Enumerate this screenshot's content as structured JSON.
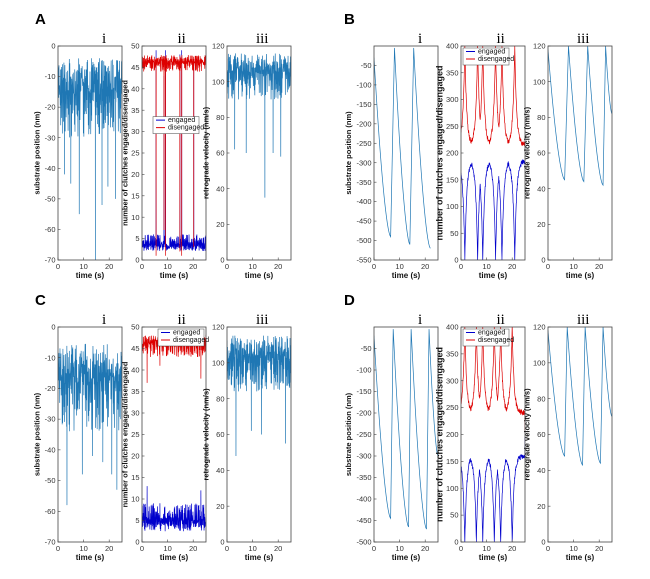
{
  "chart_data": [
    {
      "type": "line",
      "panel": "A",
      "subpanel": "i",
      "xlabel": "time (s)",
      "ylabel": "substrate position (nm)",
      "xlim": [
        0,
        25
      ],
      "ylim": [
        -70,
        0
      ],
      "xticks": [
        0,
        10,
        20
      ],
      "yticks": [
        0,
        -10,
        -20,
        -30,
        -40,
        -50,
        -60,
        -70
      ],
      "series": [
        {
          "color": "#1f77b4",
          "pattern": "noise",
          "baseline": -10,
          "spread": 20,
          "spikes": [
            [
              2.5,
              -42
            ],
            [
              5,
              -45
            ],
            [
              8.3,
              -55
            ],
            [
              14.6,
              -70
            ],
            [
              17.2,
              -52
            ],
            [
              19.5,
              -46
            ],
            [
              22.5,
              -50
            ]
          ]
        }
      ]
    },
    {
      "type": "line",
      "panel": "A",
      "subpanel": "ii",
      "xlabel": "time (s)",
      "ylabel": "number of clutches engaged/disengaged",
      "xlim": [
        0,
        25
      ],
      "ylim": [
        0,
        50
      ],
      "xticks": [
        0,
        10,
        20
      ],
      "yticks": [
        0,
        5,
        10,
        15,
        20,
        25,
        30,
        35,
        40,
        45,
        50
      ],
      "legend": {
        "position": "upper-middle",
        "entries": [
          "engaged",
          "disengaged"
        ]
      },
      "series": [
        {
          "name": "engaged",
          "color": "#0000cc",
          "pattern": "noise",
          "baseline": 3,
          "spread": 3,
          "spikes": [
            [
              5.5,
              49
            ],
            [
              8.6,
              43
            ],
            [
              9.2,
              49
            ],
            [
              14.8,
              48
            ],
            [
              15.5,
              49
            ],
            [
              20.2,
              47
            ]
          ]
        },
        {
          "name": "disengaged",
          "color": "#dd0000",
          "pattern": "noise",
          "baseline": 47,
          "spread": 3,
          "spikes": [
            [
              5.5,
              1
            ],
            [
              8.6,
              7
            ],
            [
              9.2,
              1
            ],
            [
              14.8,
              2
            ],
            [
              15.5,
              1
            ],
            [
              20.2,
              3
            ]
          ]
        }
      ]
    },
    {
      "type": "line",
      "panel": "A",
      "subpanel": "iii",
      "xlabel": "time (s)",
      "ylabel": "retrograde velocity (nm/s)",
      "xlim": [
        0,
        25
      ],
      "ylim": [
        0,
        120
      ],
      "xticks": [
        0,
        10,
        20
      ],
      "yticks": [
        0,
        20,
        40,
        60,
        80,
        100,
        120
      ],
      "series": [
        {
          "color": "#1f77b4",
          "pattern": "noise",
          "baseline": 110,
          "spread": 20,
          "spikes": [
            [
              3,
              62
            ],
            [
              7.5,
              60
            ],
            [
              14.8,
              35
            ],
            [
              18,
              60
            ],
            [
              21,
              58
            ]
          ]
        }
      ]
    },
    {
      "type": "line",
      "panel": "B",
      "subpanel": "i",
      "xlabel": "time (s)",
      "ylabel": "substrate position (nm)",
      "xlim": [
        0,
        25
      ],
      "ylim": [
        -550,
        0
      ],
      "xticks": [
        0,
        10,
        20
      ],
      "yticks": [
        -50,
        -100,
        -150,
        -200,
        -250,
        -300,
        -350,
        -400,
        -450,
        -500,
        -550
      ],
      "series": [
        {
          "color": "#1f77b4",
          "pattern": "sawtooth",
          "peaks": [
            1,
            8,
            15.5
          ],
          "troughs": [
            [
              6.5,
              -490
            ],
            [
              14,
              -510
            ],
            [
              22,
              -520
            ]
          ],
          "start": -30,
          "top": -5
        }
      ]
    },
    {
      "type": "line",
      "panel": "B",
      "subpanel": "ii",
      "xlabel": "time (s)",
      "ylabel": "number of clutches engaged/disengaged",
      "xlim": [
        0,
        25
      ],
      "ylim": [
        0,
        400
      ],
      "xticks": [
        0,
        10,
        20
      ],
      "yticks": [
        0,
        50,
        100,
        150,
        200,
        250,
        300,
        350,
        400
      ],
      "legend": {
        "position": "upper-left",
        "entries": [
          "engaged",
          "disengaged"
        ]
      },
      "series": [
        {
          "name": "engaged",
          "color": "#0000cc",
          "pattern": "cycles",
          "events": [
            1.5,
            8.5,
            16
          ],
          "events2": [
            6.5,
            13.5,
            21
          ],
          "plateau": 185,
          "tip": 0
        },
        {
          "name": "disengaged",
          "color": "#dd0000",
          "pattern": "cycles",
          "events": [
            1.5,
            8.5,
            16
          ],
          "events2": [
            6.5,
            13.5,
            21
          ],
          "plateau": 215,
          "tip": 400
        }
      ]
    },
    {
      "type": "line",
      "panel": "B",
      "subpanel": "iii",
      "xlabel": "time (s)",
      "ylabel": "retrograde velocity (nm/s)",
      "xlim": [
        0,
        25
      ],
      "ylim": [
        0,
        120
      ],
      "xticks": [
        0,
        10,
        20
      ],
      "yticks": [
        0,
        20,
        40,
        60,
        80,
        100,
        120
      ],
      "series": [
        {
          "color": "#1f77b4",
          "pattern": "sawtooth",
          "peaks": [
            1,
            8,
            15.5,
            22.5
          ],
          "troughs": [
            [
              6.5,
              45
            ],
            [
              14,
              44
            ],
            [
              21.5,
              42
            ],
            [
              25,
              82
            ]
          ],
          "start": 118,
          "top": 120
        }
      ]
    },
    {
      "type": "line",
      "panel": "C",
      "subpanel": "i",
      "xlabel": "time (s)",
      "ylabel": "substrate position (nm)",
      "xlim": [
        0,
        25
      ],
      "ylim": [
        -70,
        0
      ],
      "xticks": [
        0,
        10,
        20
      ],
      "yticks": [
        0,
        -10,
        -20,
        -30,
        -40,
        -50,
        -60,
        -70
      ],
      "series": [
        {
          "color": "#1f77b4",
          "pattern": "noise",
          "baseline": -12,
          "spread": 22,
          "spikes": [
            [
              3.5,
              -58
            ],
            [
              9.5,
              -48
            ],
            [
              13.5,
              -42
            ],
            [
              17.5,
              -44
            ],
            [
              21,
              -48
            ],
            [
              23,
              -53
            ]
          ]
        }
      ]
    },
    {
      "type": "line",
      "panel": "C",
      "subpanel": "ii",
      "xlabel": "time (s)",
      "ylabel": "number of clutches engaged/disengaged",
      "xlim": [
        0,
        25
      ],
      "ylim": [
        0,
        50
      ],
      "xticks": [
        0,
        10,
        20
      ],
      "yticks": [
        0,
        5,
        10,
        15,
        20,
        25,
        30,
        35,
        40,
        45,
        50
      ],
      "legend": {
        "position": "upper-right",
        "entries": [
          "engaged",
          "disengaged"
        ]
      },
      "series": [
        {
          "name": "engaged",
          "color": "#0000cc",
          "pattern": "noise",
          "baseline": 4,
          "spread": 5,
          "spikes": [
            [
              2,
              13
            ],
            [
              7,
              9
            ],
            [
              23,
              12
            ]
          ]
        },
        {
          "name": "disengaged",
          "color": "#dd0000",
          "pattern": "noise",
          "baseline": 47,
          "spread": 4,
          "spikes": [
            [
              2,
              37
            ],
            [
              7,
              41
            ],
            [
              23,
              38
            ]
          ]
        }
      ]
    },
    {
      "type": "line",
      "panel": "C",
      "subpanel": "iii",
      "xlabel": "time (s)",
      "ylabel": "retrograde velocity (nm/s)",
      "xlim": [
        0,
        25
      ],
      "ylim": [
        0,
        120
      ],
      "xticks": [
        0,
        10,
        20
      ],
      "yticks": [
        0,
        20,
        40,
        60,
        80,
        100,
        120
      ],
      "series": [
        {
          "color": "#1f77b4",
          "pattern": "noise",
          "baseline": 108,
          "spread": 24,
          "spikes": [
            [
              3.5,
              48
            ],
            [
              9.5,
              62
            ],
            [
              13.5,
              60
            ],
            [
              22.8,
              55
            ]
          ]
        }
      ]
    },
    {
      "type": "line",
      "panel": "D",
      "subpanel": "i",
      "xlabel": "time (s)",
      "ylabel": "substrate position (nm)",
      "xlim": [
        0,
        25
      ],
      "ylim": [
        -500,
        0
      ],
      "xticks": [
        0,
        10,
        20
      ],
      "yticks": [
        -50,
        -100,
        -150,
        -200,
        -250,
        -300,
        -350,
        -400,
        -450,
        -500
      ],
      "series": [
        {
          "color": "#1f77b4",
          "pattern": "sawtooth",
          "peaks": [
            0.5,
            7.5,
            14.5,
            21.5
          ],
          "troughs": [
            [
              6.5,
              -445
            ],
            [
              13.5,
              -465
            ],
            [
              20.5,
              -470
            ],
            [
              25,
              -300
            ]
          ],
          "start": -20,
          "top": -5
        }
      ]
    },
    {
      "type": "line",
      "panel": "D",
      "subpanel": "ii",
      "xlabel": "time (s)",
      "ylabel": "number of clutches engaged/disengaged",
      "xlim": [
        0,
        25
      ],
      "ylim": [
        0,
        400
      ],
      "xticks": [
        0,
        10,
        20
      ],
      "yticks": [
        0,
        50,
        100,
        150,
        200,
        250,
        300,
        350,
        400
      ],
      "legend": {
        "position": "upper-left",
        "entries": [
          "engaged",
          "disengaged"
        ]
      },
      "series": [
        {
          "name": "engaged",
          "color": "#0000cc",
          "pattern": "cycles",
          "events": [
            1.5,
            8.5,
            15.5
          ],
          "events2": [
            6,
            13,
            20
          ],
          "plateau": 160,
          "tip": 0,
          "tail": 195
        },
        {
          "name": "disengaged",
          "color": "#dd0000",
          "pattern": "cycles",
          "events": [
            1.5,
            8.5,
            15.5
          ],
          "events2": [
            6,
            13,
            20
          ],
          "plateau": 240,
          "tip": 400,
          "tail": 205
        }
      ]
    },
    {
      "type": "line",
      "panel": "D",
      "subpanel": "iii",
      "xlabel": "time (s)",
      "ylabel": "retrograde velocity (nm/s)",
      "xlim": [
        0,
        25
      ],
      "ylim": [
        0,
        120
      ],
      "xticks": [
        0,
        10,
        20
      ],
      "yticks": [
        0,
        20,
        40,
        60,
        80,
        100,
        120
      ],
      "series": [
        {
          "color": "#1f77b4",
          "pattern": "sawtooth",
          "peaks": [
            0.5,
            7.5,
            14.5,
            21.5
          ],
          "troughs": [
            [
              6.5,
              48
            ],
            [
              13.5,
              43
            ],
            [
              20.5,
              44
            ],
            [
              25,
              70
            ]
          ],
          "start": 118,
          "top": 120
        }
      ]
    }
  ]
}
